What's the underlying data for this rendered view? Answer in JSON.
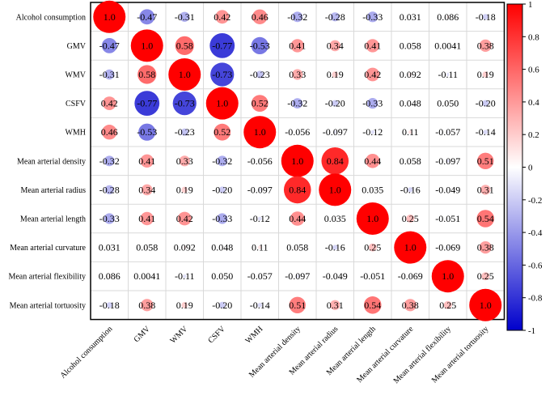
{
  "chart_data": {
    "type": "heatmap",
    "variables": [
      "Alcohol consumption",
      "GMV",
      "WMV",
      "CSFV",
      "WMH",
      "Mean arterial density",
      "Mean arterial radius",
      "Mean arterial length",
      "Mean arterial curvature",
      "Mean arterial flexibility",
      "Mean arterial tortuosity"
    ],
    "matrix": [
      [
        1.0,
        -0.47,
        -0.31,
        0.42,
        0.46,
        -0.32,
        -0.28,
        -0.33,
        0.031,
        0.086,
        -0.18
      ],
      [
        -0.47,
        1.0,
        0.58,
        -0.77,
        -0.53,
        0.41,
        0.34,
        0.41,
        0.058,
        0.0041,
        0.38
      ],
      [
        -0.31,
        0.58,
        1.0,
        -0.73,
        -0.23,
        0.33,
        0.19,
        0.42,
        0.092,
        -0.11,
        0.19
      ],
      [
        0.42,
        -0.77,
        -0.73,
        1.0,
        0.52,
        -0.32,
        -0.2,
        -0.33,
        0.048,
        0.05,
        -0.2
      ],
      [
        0.46,
        -0.53,
        -0.23,
        0.52,
        1.0,
        -0.056,
        -0.097,
        -0.12,
        0.11,
        -0.057,
        -0.14
      ],
      [
        -0.32,
        0.41,
        0.33,
        -0.32,
        -0.056,
        1.0,
        0.84,
        0.44,
        0.058,
        -0.097,
        0.51
      ],
      [
        -0.28,
        0.34,
        0.19,
        -0.2,
        -0.097,
        0.84,
        1.0,
        0.035,
        -0.16,
        -0.049,
        0.31
      ],
      [
        -0.33,
        0.41,
        0.42,
        -0.33,
        -0.12,
        0.44,
        0.035,
        1.0,
        0.25,
        -0.051,
        0.54
      ],
      [
        0.031,
        0.058,
        0.092,
        0.048,
        0.11,
        0.058,
        -0.16,
        0.25,
        1.0,
        -0.069,
        0.38
      ],
      [
        0.086,
        0.0041,
        -0.11,
        0.05,
        -0.057,
        -0.097,
        -0.049,
        -0.051,
        -0.069,
        1.0,
        0.25
      ],
      [
        -0.18,
        0.38,
        0.19,
        -0.2,
        -0.14,
        0.51,
        0.31,
        0.54,
        0.38,
        0.25,
        1.0
      ]
    ],
    "labels": [
      [
        "1.0",
        "-0.47",
        "-0.31",
        "0.42",
        "0.46",
        "-0.32",
        "-0.28",
        "-0.33",
        "0.031",
        "0.086",
        "-0.18"
      ],
      [
        "-0.47",
        "1.0",
        "0.58",
        "-0.77",
        "-0.53",
        "0.41",
        "0.34",
        "0.41",
        "0.058",
        "0.0041",
        "0.38"
      ],
      [
        "-0.31",
        "0.58",
        "1.0",
        "-0.73",
        "-0.23",
        "0.33",
        "0.19",
        "0.42",
        "0.092",
        "-0.11",
        "0.19"
      ],
      [
        "0.42",
        "-0.77",
        "-0.73",
        "1.0",
        "0.52",
        "-0.32",
        "-0.20",
        "-0.33",
        "0.048",
        "0.050",
        "-0.20"
      ],
      [
        "0.46",
        "-0.53",
        "-0.23",
        "0.52",
        "1.0",
        "-0.056",
        "-0.097",
        "-0.12",
        "0.11",
        "-0.057",
        "-0.14"
      ],
      [
        "-0.32",
        "0.41",
        "0.33",
        "-0.32",
        "-0.056",
        "1.0",
        "0.84",
        "0.44",
        "0.058",
        "-0.097",
        "0.51"
      ],
      [
        "-0.28",
        "0.34",
        "0.19",
        "-0.20",
        "-0.097",
        "0.84",
        "1.0",
        "0.035",
        "-0.16",
        "-0.049",
        "0.31"
      ],
      [
        "-0.33",
        "0.41",
        "0.42",
        "-0.33",
        "-0.12",
        "0.44",
        "0.035",
        "1.0",
        "0.25",
        "-0.051",
        "0.54"
      ],
      [
        "0.031",
        "0.058",
        "0.092",
        "0.048",
        "0.11",
        "0.058",
        "-0.16",
        "0.25",
        "1.0",
        "-0.069",
        "0.38"
      ],
      [
        "0.086",
        "0.0041",
        "-0.11",
        "0.050",
        "-0.057",
        "-0.097",
        "-0.049",
        "-0.051",
        "-0.069",
        "1.0",
        "0.25"
      ],
      [
        "-0.18",
        "0.38",
        "0.19",
        "-0.20",
        "-0.14",
        "0.51",
        "0.31",
        "0.54",
        "0.38",
        "0.25",
        "1.0"
      ]
    ],
    "colorbar": {
      "range": [
        -1,
        1
      ],
      "ticks": [
        "1",
        "0.8",
        "0.6",
        "0.4",
        "0.2",
        "0",
        "-0.2",
        "-0.4",
        "-0.6",
        "-0.8",
        "-1"
      ],
      "colors": {
        "negative": "#0000cc",
        "neutral": "#ffffff",
        "positive": "#ff0000"
      }
    },
    "grid": true,
    "marker": "circle sized by |r|"
  }
}
